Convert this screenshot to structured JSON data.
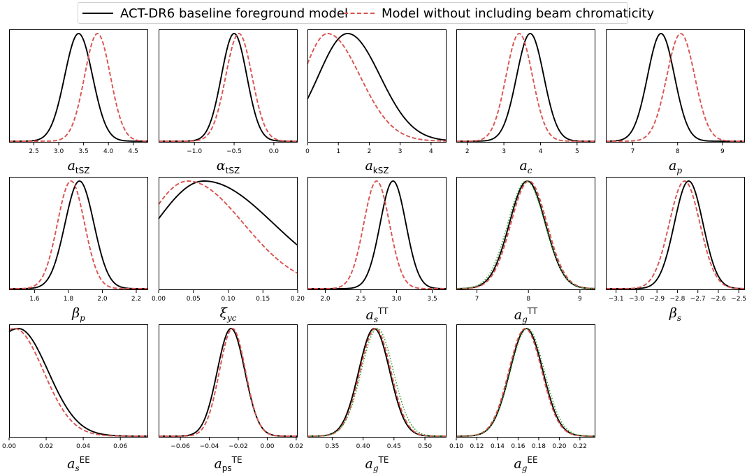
{
  "legend": {
    "baseline_label": "ACT-DR6 baseline foreground model",
    "nochrom_label": "Model without including beam chromaticity"
  },
  "colors": {
    "baseline": "#000000",
    "nochrom": "#d9534f",
    "extra": "#2ca02c"
  },
  "chart_data": [
    {
      "type": "line",
      "param": "a_tSZ",
      "xlim": [
        2.0,
        4.8
      ],
      "ticks": [
        2.5,
        3.0,
        3.5,
        4.0,
        4.5
      ],
      "tick_labels": [
        "2.5",
        "3.0",
        "3.5",
        "4.0",
        "4.5"
      ],
      "series": [
        {
          "name": "ACT-DR6 baseline foreground model",
          "shape": "gauss",
          "mu": 3.4,
          "sigma": 0.28
        },
        {
          "name": "Model without including beam chromaticity",
          "shape": "gauss",
          "mu": 3.78,
          "sigma": 0.26
        }
      ]
    },
    {
      "type": "line",
      "param": "alpha_tSZ",
      "xlim": [
        -1.45,
        0.3
      ],
      "ticks": [
        -1.0,
        -0.5,
        0.0
      ],
      "tick_labels": [
        "−1.0",
        "−0.5",
        "0.0"
      ],
      "series": [
        {
          "name": "ACT-DR6 baseline foreground model",
          "shape": "gauss",
          "mu": -0.5,
          "sigma": 0.16
        },
        {
          "name": "Model without including beam chromaticity",
          "shape": "gauss",
          "mu": -0.44,
          "sigma": 0.165
        }
      ]
    },
    {
      "type": "line",
      "param": "a_kSZ",
      "xlim": [
        0,
        4.5
      ],
      "ticks": [
        0,
        1,
        2,
        3,
        4
      ],
      "tick_labels": [
        "0",
        "1",
        "2",
        "3",
        "4"
      ],
      "series": [
        {
          "name": "ACT-DR6 baseline foreground model",
          "shape": "skew",
          "mu": 1.3,
          "sl": 0.95,
          "sr": 1.05
        },
        {
          "name": "Model without including beam chromaticity",
          "shape": "skew",
          "mu": 0.65,
          "sl": 0.8,
          "sr": 1.05
        }
      ]
    },
    {
      "type": "line",
      "param": "a_c",
      "xlim": [
        1.7,
        5.5
      ],
      "ticks": [
        2,
        3,
        4,
        5
      ],
      "tick_labels": [
        "2",
        "3",
        "4",
        "5"
      ],
      "series": [
        {
          "name": "ACT-DR6 baseline foreground model",
          "shape": "gauss",
          "mu": 3.72,
          "sigma": 0.37
        },
        {
          "name": "Model without including beam chromaticity",
          "shape": "gauss",
          "mu": 3.42,
          "sigma": 0.36
        }
      ]
    },
    {
      "type": "line",
      "param": "a_p",
      "xlim": [
        6.4,
        9.5
      ],
      "ticks": [
        7,
        8,
        9
      ],
      "tick_labels": [
        "7",
        "8",
        "9"
      ],
      "series": [
        {
          "name": "ACT-DR6 baseline foreground model",
          "shape": "gauss",
          "mu": 7.63,
          "sigma": 0.3
        },
        {
          "name": "Model without including beam chromaticity",
          "shape": "gauss",
          "mu": 8.07,
          "sigma": 0.31
        }
      ]
    },
    {
      "type": "line",
      "param": "beta_p",
      "xlim": [
        1.45,
        2.27
      ],
      "ticks": [
        1.6,
        1.8,
        2.0,
        2.2
      ],
      "tick_labels": [
        "1.6",
        "1.8",
        "2.0",
        "2.2"
      ],
      "series": [
        {
          "name": "ACT-DR6 baseline foreground model",
          "shape": "gauss",
          "mu": 1.865,
          "sigma": 0.085
        },
        {
          "name": "Model without including beam chromaticity",
          "shape": "gauss",
          "mu": 1.815,
          "sigma": 0.08
        }
      ]
    },
    {
      "type": "line",
      "param": "xi_yc",
      "xlim": [
        0,
        0.2
      ],
      "ticks": [
        0,
        0.05,
        0.1,
        0.15,
        0.2
      ],
      "tick_labels": [
        "0.00",
        "0.05",
        "0.10",
        "0.15",
        "0.20"
      ],
      "series": [
        {
          "name": "ACT-DR6 baseline foreground model",
          "shape": "skew",
          "mu": 0.065,
          "sl": 0.07,
          "sr": 0.1
        },
        {
          "name": "Model without including beam chromaticity",
          "shape": "skew",
          "mu": 0.042,
          "sl": 0.06,
          "sr": 0.08
        }
      ]
    },
    {
      "type": "line",
      "param": "a_s_TT",
      "xlim": [
        1.75,
        3.7
      ],
      "ticks": [
        2.0,
        2.5,
        3.0,
        3.5
      ],
      "tick_labels": [
        "2.0",
        "2.5",
        "3.0",
        "3.5"
      ],
      "series": [
        {
          "name": "ACT-DR6 baseline foreground model",
          "shape": "gauss",
          "mu": 2.95,
          "sigma": 0.18
        },
        {
          "name": "Model without including beam chromaticity",
          "shape": "gauss",
          "mu": 2.72,
          "sigma": 0.18
        }
      ]
    },
    {
      "type": "line",
      "param": "a_g_TT",
      "xlim": [
        6.6,
        9.3
      ],
      "ticks": [
        7,
        8,
        9
      ],
      "tick_labels": [
        "7",
        "8",
        "9"
      ],
      "series": [
        {
          "name": "ACT-DR6 baseline foreground model",
          "shape": "gauss",
          "mu": 7.98,
          "sigma": 0.35
        },
        {
          "name": "Model without including beam chromaticity",
          "shape": "gauss",
          "mu": 8.01,
          "sigma": 0.35
        },
        {
          "shape": "gauss",
          "mu": 7.96,
          "sigma": 0.36,
          "style": "dotted"
        }
      ]
    },
    {
      "type": "line",
      "param": "beta_s",
      "xlim": [
        -3.15,
        -2.47
      ],
      "ticks": [
        -3.1,
        -3.0,
        -2.9,
        -2.8,
        -2.7,
        -2.6,
        -2.5
      ],
      "tick_labels": [
        "−3.1",
        "−3.0",
        "−2.9",
        "−2.8",
        "−2.7",
        "−2.6",
        "−2.5"
      ],
      "series": [
        {
          "name": "ACT-DR6 baseline foreground model",
          "shape": "gauss",
          "mu": -2.745,
          "sigma": 0.07
        },
        {
          "name": "Model without including beam chromaticity",
          "shape": "gauss",
          "mu": -2.765,
          "sigma": 0.075
        }
      ]
    },
    {
      "type": "line",
      "param": "a_s_EE",
      "xlim": [
        0,
        0.075
      ],
      "ticks": [
        0,
        0.02,
        0.04,
        0.06
      ],
      "tick_labels": [
        "0.00",
        "0.02",
        "0.04",
        "0.06"
      ],
      "series": [
        {
          "name": "ACT-DR6 baseline foreground model",
          "shape": "skew",
          "mu": 0.005,
          "sl": 0.02,
          "sr": 0.016
        },
        {
          "name": "Model without including beam chromaticity",
          "shape": "skew",
          "mu": 0.003,
          "sl": 0.02,
          "sr": 0.0155
        }
      ]
    },
    {
      "type": "line",
      "param": "a_ps_TE",
      "xlim": [
        -0.075,
        0.021
      ],
      "ticks": [
        -0.06,
        -0.04,
        -0.02,
        0.0,
        0.02
      ],
      "tick_labels": [
        "−0.06",
        "−0.04",
        "−0.02",
        "0.00",
        "0.02"
      ],
      "series": [
        {
          "name": "ACT-DR6 baseline foreground model",
          "shape": "gauss",
          "mu": -0.025,
          "sigma": 0.0095
        },
        {
          "name": "Model without including beam chromaticity",
          "shape": "gauss",
          "mu": -0.024,
          "sigma": 0.009
        }
      ]
    },
    {
      "type": "line",
      "param": "a_g_TE",
      "xlim": [
        0.31,
        0.535
      ],
      "ticks": [
        0.35,
        0.4,
        0.45,
        0.5
      ],
      "tick_labels": [
        "0.35",
        "0.40",
        "0.45",
        "0.50"
      ],
      "series": [
        {
          "name": "ACT-DR6 baseline foreground model",
          "shape": "gauss",
          "mu": 0.418,
          "sigma": 0.025
        },
        {
          "name": "Model without including beam chromaticity",
          "shape": "gauss",
          "mu": 0.42,
          "sigma": 0.025
        },
        {
          "shape": "gauss",
          "mu": 0.423,
          "sigma": 0.026,
          "style": "dotted"
        }
      ]
    },
    {
      "type": "line",
      "param": "a_g_EE",
      "xlim": [
        0.1,
        0.235
      ],
      "ticks": [
        0.1,
        0.12,
        0.14,
        0.16,
        0.18,
        0.2,
        0.22
      ],
      "tick_labels": [
        "0.10",
        "0.12",
        "0.14",
        "0.16",
        "0.18",
        "0.20",
        "0.22"
      ],
      "series": [
        {
          "name": "ACT-DR6 baseline foreground model",
          "shape": "gauss",
          "mu": 0.168,
          "sigma": 0.016
        },
        {
          "name": "Model without including beam chromaticity",
          "shape": "gauss",
          "mu": 0.167,
          "sigma": 0.016
        },
        {
          "shape": "gauss",
          "mu": 0.169,
          "sigma": 0.0165,
          "style": "dotted"
        }
      ]
    }
  ]
}
